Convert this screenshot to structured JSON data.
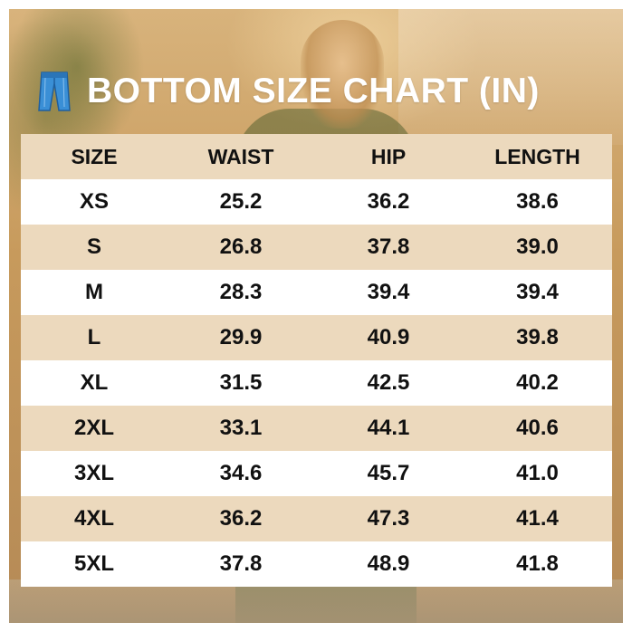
{
  "title": "BOTTOM SIZE CHART (IN)",
  "icon": "jeans-icon",
  "colors": {
    "title_text": "#ffffff",
    "header_bg": "#ecd9bd",
    "band_bg": "#ecd9bd",
    "row_bg": "#ffffff",
    "cell_text": "#111111"
  },
  "table": {
    "headers": [
      "SIZE",
      "WAIST",
      "HIP",
      "LENGTH"
    ],
    "rows": [
      [
        "XS",
        "25.2",
        "36.2",
        "38.6"
      ],
      [
        "S",
        "26.8",
        "37.8",
        "39.0"
      ],
      [
        "M",
        "28.3",
        "39.4",
        "39.4"
      ],
      [
        "L",
        "29.9",
        "40.9",
        "39.8"
      ],
      [
        "XL",
        "31.5",
        "42.5",
        "40.2"
      ],
      [
        "2XL",
        "33.1",
        "44.1",
        "40.6"
      ],
      [
        "3XL",
        "34.6",
        "45.7",
        "41.0"
      ],
      [
        "4XL",
        "36.2",
        "47.3",
        "41.4"
      ],
      [
        "5XL",
        "37.8",
        "48.9",
        "41.8"
      ]
    ]
  }
}
